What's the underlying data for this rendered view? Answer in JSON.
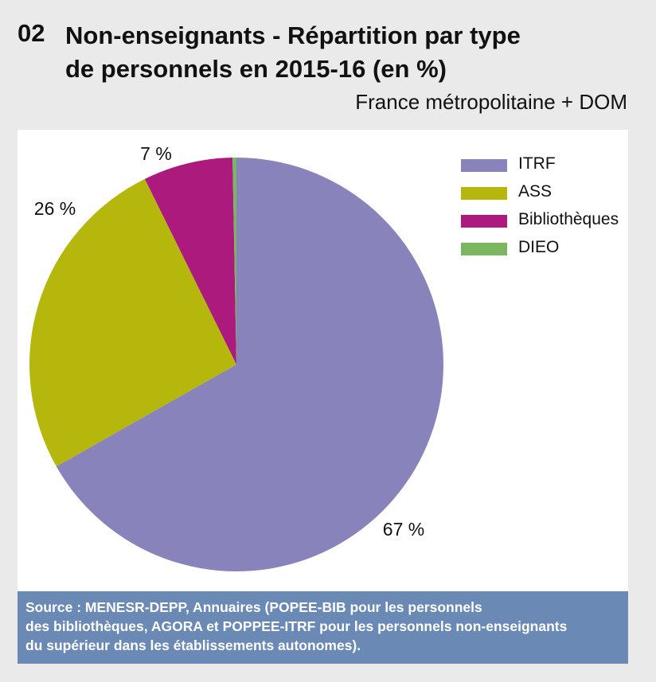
{
  "header": {
    "number": "02",
    "title_line1": "Non-enseignants - Répartition par type",
    "title_line2": "de personnels en 2015-16 (en %)",
    "subtitle": "France métropolitaine + DOM"
  },
  "chart_data": {
    "type": "pie",
    "title": "Non-enseignants - Répartition par type de personnels en 2015-16 (en %)",
    "subtitle": "France métropolitaine + DOM",
    "start": "12 o'clock, clockwise",
    "legend_position": "top-right",
    "slices": [
      {
        "name": "ITRF",
        "value": 66.8,
        "label": "67 %",
        "color": "#8883bb"
      },
      {
        "name": "ASS",
        "value": 25.9,
        "label": "26 %",
        "color": "#b5b70c"
      },
      {
        "name": "Bibliothèques",
        "value": 7.0,
        "label": "7 %",
        "color": "#ab1a7c"
      },
      {
        "name": "DIEO",
        "value": 0.3,
        "label": "",
        "color": "#7bb661"
      }
    ]
  },
  "source": {
    "line1": "Source : MENESR-DEPP, Annuaires (POPEE-BIB pour les personnels",
    "line2": "des bibliothèques, AGORA et POPPEE-ITRF pour les personnels non-enseignants",
    "line3": "du supérieur dans les établissements autonomes)."
  }
}
